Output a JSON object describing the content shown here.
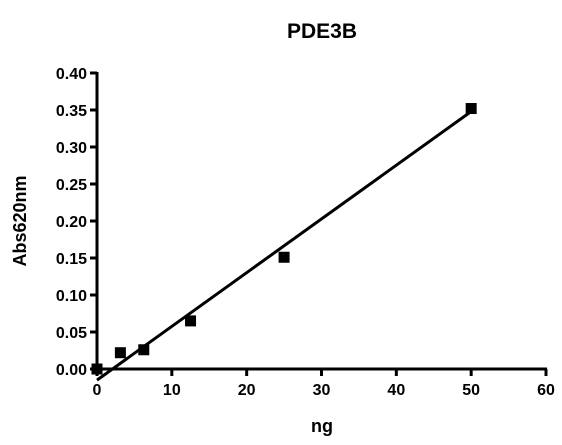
{
  "chart_data": {
    "type": "scatter",
    "title": "PDE3B",
    "xlabel": "ng",
    "ylabel": "Abs620nm",
    "xlim": [
      0,
      60
    ],
    "ylim": [
      0,
      0.4
    ],
    "x_ticks": [
      "0",
      "10",
      "20",
      "30",
      "40",
      "50",
      "60"
    ],
    "y_ticks": [
      "0.00",
      "0.05",
      "0.10",
      "0.15",
      "0.20",
      "0.25",
      "0.30",
      "0.35",
      "0.40"
    ],
    "points": [
      {
        "x": 0,
        "y": 0.0
      },
      {
        "x": 3.125,
        "y": 0.022
      },
      {
        "x": 6.25,
        "y": 0.026
      },
      {
        "x": 12.5,
        "y": 0.065
      },
      {
        "x": 25,
        "y": 0.151
      },
      {
        "x": 50,
        "y": 0.352
      }
    ],
    "fit_line": {
      "x": [
        0,
        50
      ],
      "y": [
        -0.015,
        0.348
      ]
    },
    "marker": "filled-square",
    "color": "#000000",
    "grid": false,
    "legend": "none"
  }
}
